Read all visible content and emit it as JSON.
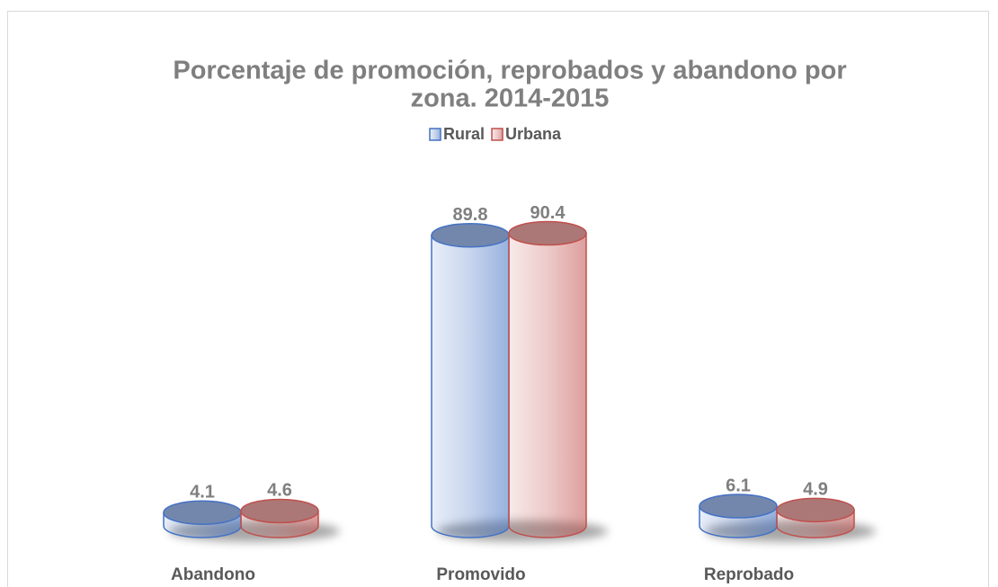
{
  "chart_data": {
    "type": "bar3d",
    "title": [
      "Porcentaje de promoción, reprobados y abandono por",
      "zona. 2014-2015"
    ],
    "categories": [
      "Abandono",
      "Promovido",
      "Reprobado"
    ],
    "series": [
      {
        "name": "Rural",
        "color": "#4472c4",
        "values": [
          4.1,
          89.8,
          6.1
        ]
      },
      {
        "name": "Urbana",
        "color": "#c0504d",
        "values": [
          4.6,
          90.4,
          4.9
        ]
      }
    ],
    "ylim": [
      0,
      100
    ]
  }
}
